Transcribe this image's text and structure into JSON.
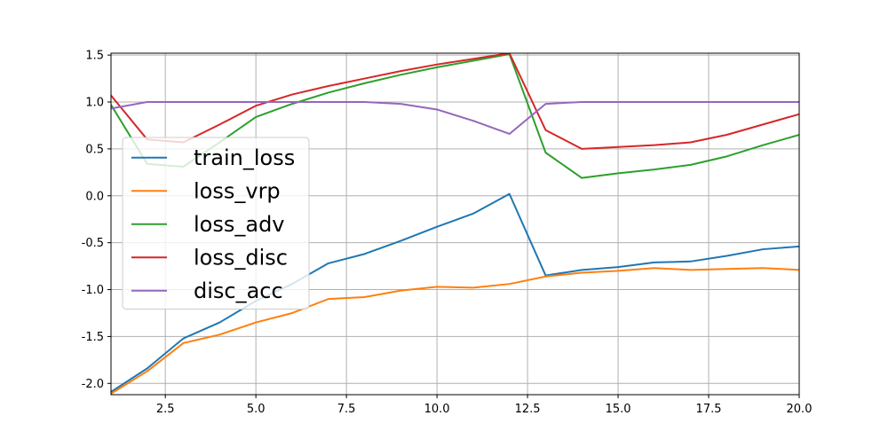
{
  "chart_data": {
    "type": "line",
    "title": "",
    "xlabel": "",
    "ylabel": "",
    "xlim": [
      1,
      20
    ],
    "ylim": [
      -2.12,
      1.52
    ],
    "x": [
      1,
      2,
      3,
      4,
      5,
      6,
      7,
      8,
      9,
      10,
      11,
      12,
      13,
      14,
      15,
      16,
      17,
      18,
      19,
      20
    ],
    "x_ticks": [
      2.5,
      5.0,
      7.5,
      10.0,
      12.5,
      15.0,
      17.5,
      20.0
    ],
    "x_tick_labels": [
      "2.5",
      "5.0",
      "7.5",
      "10.0",
      "12.5",
      "15.0",
      "17.5",
      "20.0"
    ],
    "y_ticks": [
      -2.0,
      -1.5,
      -1.0,
      -0.5,
      0.0,
      0.5,
      1.0,
      1.5
    ],
    "y_tick_labels": [
      "-2.0",
      "-1.5",
      "-1.0",
      "-0.5",
      "0.0",
      "0.5",
      "1.0",
      "1.5"
    ],
    "grid": true,
    "legend_position": "left",
    "series": [
      {
        "name": "train_loss",
        "color": "#1f77b4",
        "values": [
          -2.09,
          -1.84,
          -1.52,
          -1.35,
          -1.12,
          -0.94,
          -0.72,
          -0.62,
          -0.48,
          -0.33,
          -0.19,
          0.02,
          -0.85,
          -0.79,
          -0.76,
          -0.71,
          -0.7,
          -0.64,
          -0.57,
          -0.54
        ]
      },
      {
        "name": "loss_vrp",
        "color": "#ff7f0e",
        "values": [
          -2.11,
          -1.87,
          -1.57,
          -1.48,
          -1.35,
          -1.25,
          -1.1,
          -1.08,
          -1.01,
          -0.97,
          -0.98,
          -0.94,
          -0.86,
          -0.82,
          -0.8,
          -0.77,
          -0.79,
          -0.78,
          -0.77,
          -0.79
        ]
      },
      {
        "name": "loss_adv",
        "color": "#2ca02c",
        "values": [
          0.97,
          0.34,
          0.31,
          0.57,
          0.84,
          0.98,
          1.1,
          1.2,
          1.29,
          1.37,
          1.44,
          1.51,
          0.46,
          0.19,
          0.24,
          0.28,
          0.33,
          0.42,
          0.54,
          0.65
        ]
      },
      {
        "name": "loss_disc",
        "color": "#d62728",
        "values": [
          1.07,
          0.6,
          0.57,
          0.76,
          0.96,
          1.08,
          1.17,
          1.25,
          1.33,
          1.4,
          1.46,
          1.52,
          0.7,
          0.5,
          0.52,
          0.54,
          0.57,
          0.65,
          0.76,
          0.87
        ]
      },
      {
        "name": "disc_acc",
        "color": "#9467bd",
        "values": [
          0.93,
          1.0,
          1.0,
          1.0,
          1.0,
          1.0,
          1.0,
          1.0,
          0.98,
          0.92,
          0.8,
          0.66,
          0.98,
          1.0,
          1.0,
          1.0,
          1.0,
          1.0,
          1.0,
          1.0
        ]
      }
    ]
  }
}
